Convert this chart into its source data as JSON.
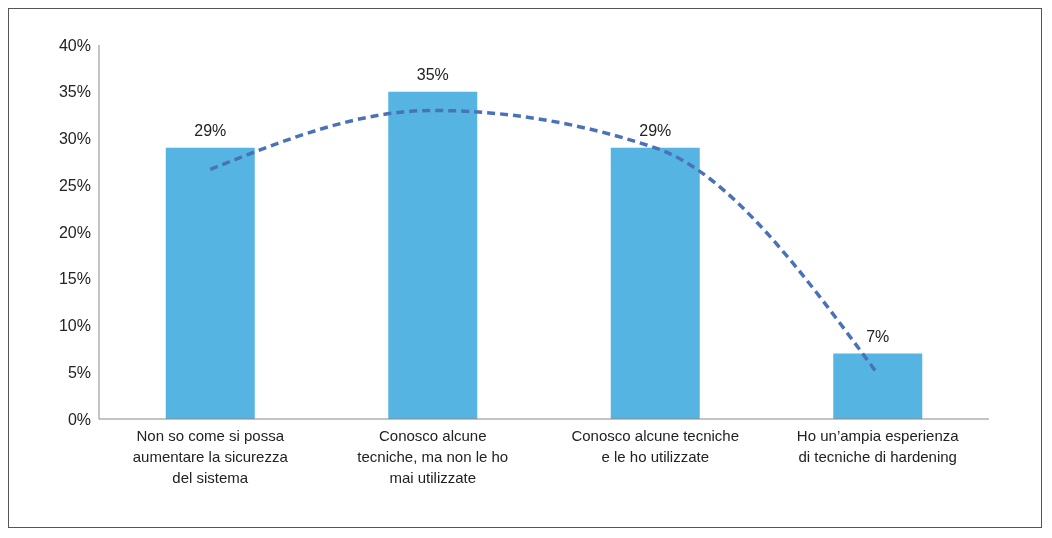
{
  "chart_data": {
    "type": "bar",
    "categories": [
      "Non so come si possa\naumentare la sicurezza\ndel sistema",
      "Conosco alcune\ntecniche, ma non le ho\nmai utilizzate",
      "Conosco alcune tecniche\ne le ho utilizzate",
      "Ho un’ampia esperienza\ndi tecniche di hardening"
    ],
    "series": [
      {
        "color": "#56b4e3",
        "values": [
          29,
          35,
          29,
          7
        ],
        "value_labels": [
          "29%",
          "35%",
          "29%",
          "7%"
        ]
      },
      {
        "type": "line",
        "color": "#4a72b8",
        "values": [
          26.7,
          33,
          29,
          4.8
        ],
        "line_style": "dashed",
        "marker": "none"
      }
    ],
    "ylim": [
      0,
      40
    ],
    "yticks": [
      {
        "value": 0,
        "label": "0%"
      },
      {
        "value": 5,
        "label": "5%"
      },
      {
        "value": 10,
        "label": "10%"
      },
      {
        "value": 15,
        "label": "15%"
      },
      {
        "value": 20,
        "label": "20%"
      },
      {
        "value": 25,
        "label": "25%"
      },
      {
        "value": 30,
        "label": "30%"
      },
      {
        "value": 35,
        "label": "35%"
      },
      {
        "value": 40,
        "label": "40%"
      }
    ],
    "grid": false
  }
}
